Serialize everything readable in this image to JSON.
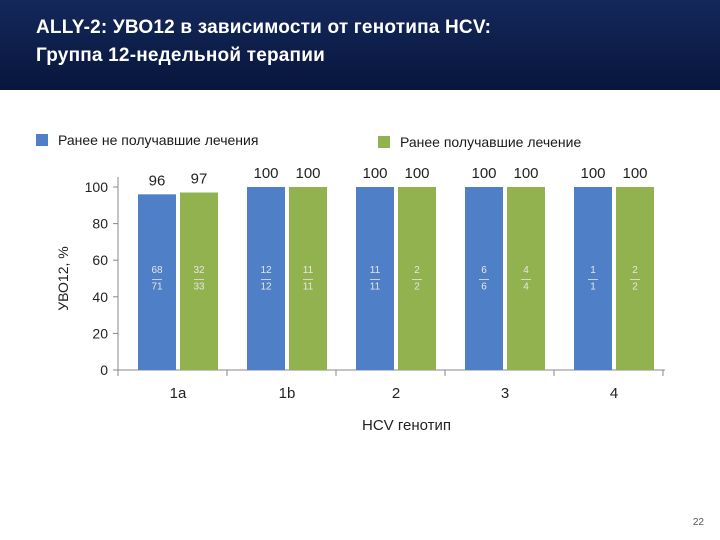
{
  "header": {
    "title_line1": "ALLY-2: УВО12 в зависимости от генотипа HCV:",
    "title_line2": "Группа 12-недельной терапии"
  },
  "page_number": "22",
  "colors": {
    "header_bg": "#0b1e4a",
    "series_naive": "#4f7fc6",
    "series_experienced": "#92b250"
  },
  "chart_data": {
    "type": "bar",
    "xlabel": "HCV генотип",
    "ylabel": "УВО12, %",
    "ylim": [
      0,
      100
    ],
    "yticks": [
      0,
      20,
      40,
      60,
      80,
      100
    ],
    "categories": [
      "1a",
      "1b",
      "2",
      "3",
      "4"
    ],
    "legend_position": "top",
    "series": [
      {
        "name": "Ранее не получавшие лечения",
        "color": "#4f7fc6",
        "values": [
          96,
          100,
          100,
          100,
          100
        ],
        "value_labels": [
          "96",
          "100",
          "100",
          "100",
          "100"
        ],
        "n": [
          "68",
          "12",
          "11",
          "6",
          "1"
        ],
        "N": [
          "71",
          "12",
          "11",
          "6",
          "1"
        ]
      },
      {
        "name": "Ранее получавшие лечение",
        "color": "#92b250",
        "values": [
          97,
          100,
          100,
          100,
          100
        ],
        "value_labels": [
          "97",
          "100",
          "100",
          "100",
          "100"
        ],
        "n": [
          "32",
          "11",
          "2",
          "4",
          "2"
        ],
        "N": [
          "33",
          "11",
          "2",
          "4",
          "2"
        ]
      }
    ]
  }
}
